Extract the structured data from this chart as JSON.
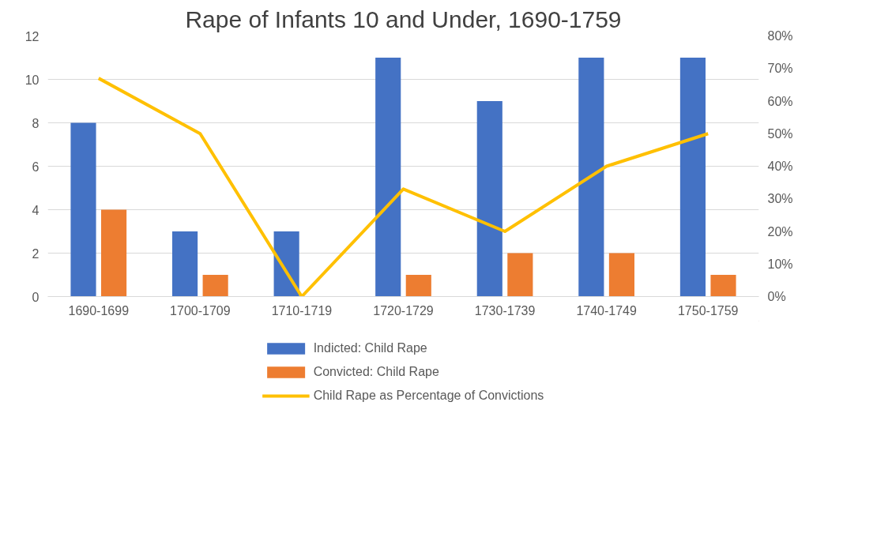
{
  "chart_data": {
    "type": "bar",
    "title": "Rape of Infants 10 and Under, 1690-1759",
    "categories": [
      "1690-1699",
      "1700-1709",
      "1710-1719",
      "1720-1729",
      "1730-1739",
      "1740-1749",
      "1750-1759"
    ],
    "series": [
      {
        "name": "Indicted: Child Rape",
        "color": "#4472c4",
        "values": [
          8,
          3,
          3,
          11,
          9,
          11,
          11
        ]
      },
      {
        "name": "Convicted: Child Rape",
        "color": "#ed7d31",
        "values": [
          4,
          1,
          0,
          1,
          2,
          2,
          1
        ]
      },
      {
        "name": "Child Rape as Percentage of Convictions",
        "type": "line",
        "axis": "y2",
        "color": "#ffc000",
        "values": [
          67,
          50,
          0,
          33,
          20,
          40,
          50
        ]
      }
    ],
    "ylim": [
      0,
      12
    ],
    "yticks": [
      0,
      2,
      4,
      6,
      8,
      10,
      12
    ],
    "y2lim": [
      0,
      80
    ],
    "y2ticks": [
      {
        "value": 0,
        "label": "0%"
      },
      {
        "value": 10,
        "label": "10%"
      },
      {
        "value": 20,
        "label": "20%"
      },
      {
        "value": 30,
        "label": "30%"
      },
      {
        "value": 40,
        "label": "40%"
      },
      {
        "value": 50,
        "label": "50%"
      },
      {
        "value": 60,
        "label": "60%"
      },
      {
        "value": 70,
        "label": "70%"
      },
      {
        "value": 80,
        "label": "80%"
      }
    ],
    "grid": "y",
    "legend": "bottom"
  }
}
